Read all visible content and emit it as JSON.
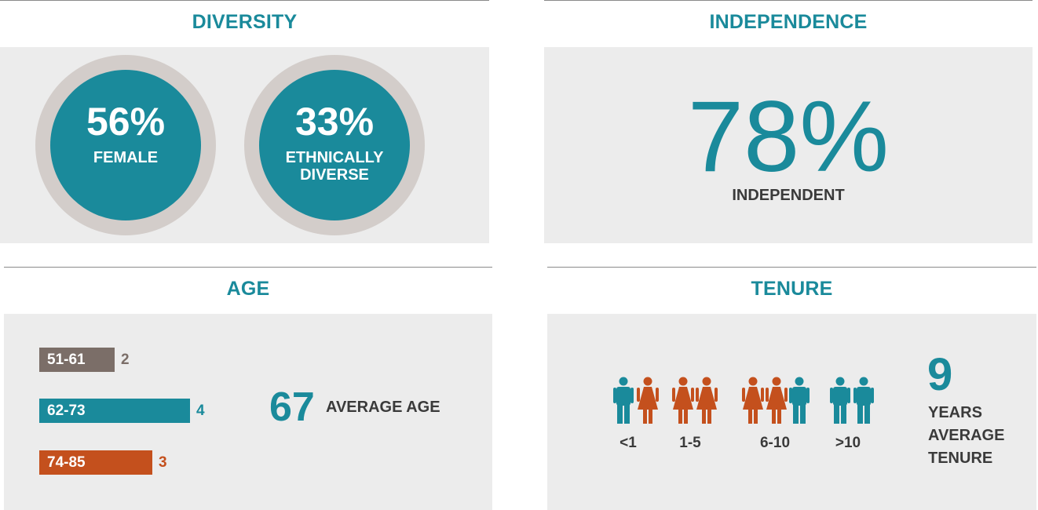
{
  "diversity": {
    "title": "DIVERSITY",
    "female": {
      "pct": "56%",
      "label": "FEMALE"
    },
    "ethnic": {
      "pct": "33%",
      "label_line1": "ETHNICALLY",
      "label_line2": "DIVERSE"
    }
  },
  "independence": {
    "title": "INDEPENDENCE",
    "pct": "78%",
    "label": "INDEPENDENT"
  },
  "age": {
    "title": "AGE",
    "bars": [
      {
        "label": "51-61",
        "value": "2",
        "count": 2,
        "color": "#7b6e68"
      },
      {
        "label": "62-73",
        "value": "4",
        "count": 4,
        "color": "#1a8a9b"
      },
      {
        "label": "74-85",
        "value": "3",
        "count": 3,
        "color": "#c4501d"
      }
    ],
    "average_number": "67",
    "average_label": "AVERAGE AGE"
  },
  "tenure": {
    "title": "TENURE",
    "groups": [
      {
        "label": "<1",
        "figures": [
          "male",
          "female"
        ]
      },
      {
        "label": "1-5",
        "figures": [
          "female",
          "female"
        ]
      },
      {
        "label": "6-10",
        "figures": [
          "female",
          "female",
          "male"
        ]
      },
      {
        "label": ">10",
        "figures": [
          "male",
          "male"
        ]
      }
    ],
    "average_number": "9",
    "average_line1": "YEARS",
    "average_line2": "AVERAGE",
    "average_line3": "TENURE"
  },
  "colors": {
    "teal": "#1a8a9b",
    "orange": "#c4501d",
    "taupe": "#7b6e68",
    "panel": "#ececec",
    "ring": "#d3cdca"
  }
}
